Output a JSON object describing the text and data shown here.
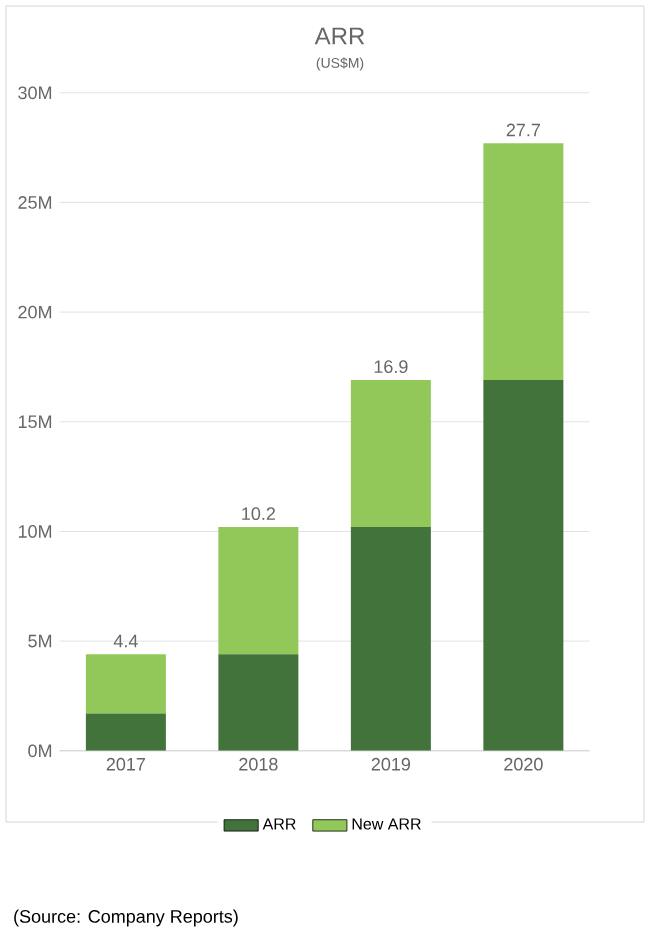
{
  "chart_data": {
    "type": "bar",
    "title": "ARR",
    "subtitle": "(US$M)",
    "categories": [
      "2017",
      "2018",
      "2019",
      "2020"
    ],
    "series": [
      {
        "name": "ARR",
        "color": "#41733a",
        "values": [
          1.7,
          4.4,
          10.2,
          16.9
        ]
      },
      {
        "name": "New ARR",
        "color": "#92c85a",
        "values": [
          2.7,
          5.8,
          6.7,
          10.8
        ]
      }
    ],
    "stacked": true,
    "totals": [
      "4.4",
      "10.2",
      "16.9",
      "27.7"
    ],
    "ylim": [
      0,
      30
    ],
    "yticks": [
      {
        "value": 0,
        "label": "0M"
      },
      {
        "value": 5,
        "label": "5M"
      },
      {
        "value": 10,
        "label": "10M"
      },
      {
        "value": 15,
        "label": "15M"
      },
      {
        "value": 20,
        "label": "20M"
      },
      {
        "value": 25,
        "label": "25M"
      },
      {
        "value": 30,
        "label": "30M"
      }
    ],
    "grid": "y",
    "legend": "bottom",
    "annotations": [
      "(Source: Company Reports)"
    ]
  }
}
